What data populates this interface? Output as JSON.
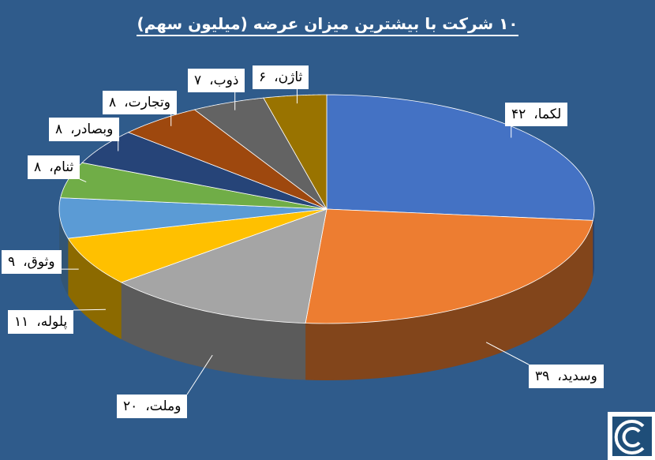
{
  "chart_data": {
    "type": "pie3d",
    "title": "۱۰ شرکت با بیشترین میزان عرضه (میلیون سهم)",
    "categories": [
      "لکما",
      "وسدید",
      "وملت",
      "پلوله",
      "وثوق",
      "ثنام",
      "وبصادر",
      "وتجارت",
      "ذوب",
      "ثاژن"
    ],
    "values": [
      42,
      39,
      20,
      11,
      9,
      8,
      8,
      8,
      7,
      6
    ],
    "value_labels": [
      "۴۲",
      "۳۹",
      "۲۰",
      "۱۱",
      "۹",
      "۸",
      "۸",
      "۸",
      "۷",
      "۶"
    ],
    "label_separator": "،",
    "colors": [
      "#4472c4",
      "#ed7d31",
      "#a5a5a5",
      "#ffc000",
      "#5b9bd5",
      "#70ad47",
      "#264478",
      "#9e480e",
      "#636363",
      "#997300"
    ]
  }
}
